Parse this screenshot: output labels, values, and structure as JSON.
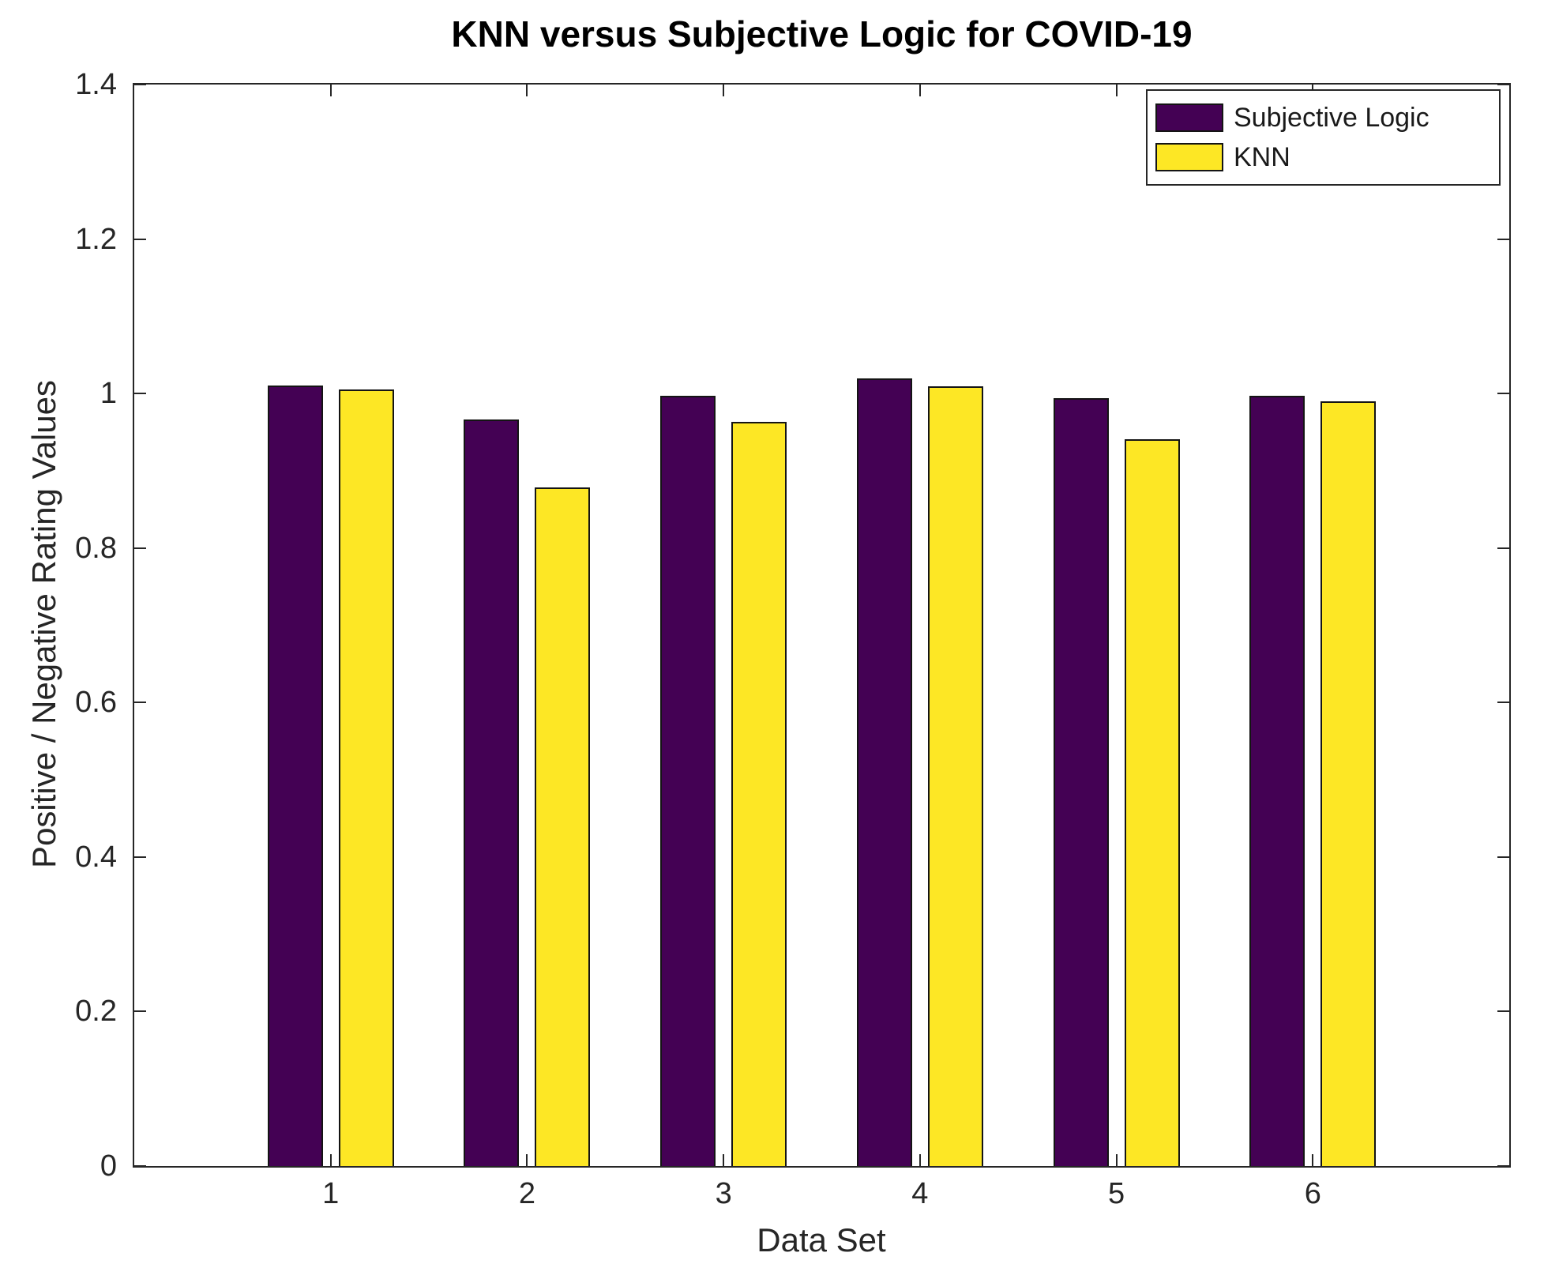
{
  "chart_data": {
    "type": "bar",
    "title": "KNN versus Subjective Logic for COVID-19",
    "xlabel": "Data Set",
    "ylabel": "Positive / Negative Rating Values",
    "categories": [
      "1",
      "2",
      "3",
      "4",
      "5",
      "6"
    ],
    "series": [
      {
        "name": "Subjective Logic",
        "color": "#440154",
        "values": [
          1.01,
          0.966,
          0.997,
          1.02,
          0.994,
          0.997
        ]
      },
      {
        "name": "KNN",
        "color": "#FDE725",
        "values": [
          1.005,
          0.878,
          0.963,
          1.009,
          0.941,
          0.99
        ]
      }
    ],
    "xlim": [
      0,
      7
    ],
    "ylim": [
      0,
      1.4
    ],
    "yticks": [
      0,
      0.2,
      0.4,
      0.6,
      0.8,
      1.0,
      1.2,
      1.4
    ],
    "ytick_labels": [
      "0",
      "0.2",
      "0.4",
      "0.6",
      "0.8",
      "1",
      "1.2",
      "1.4"
    ],
    "grid": false,
    "legend_position": "top-right",
    "bar_edge_color": "#141414",
    "axis_color": "#262626"
  }
}
